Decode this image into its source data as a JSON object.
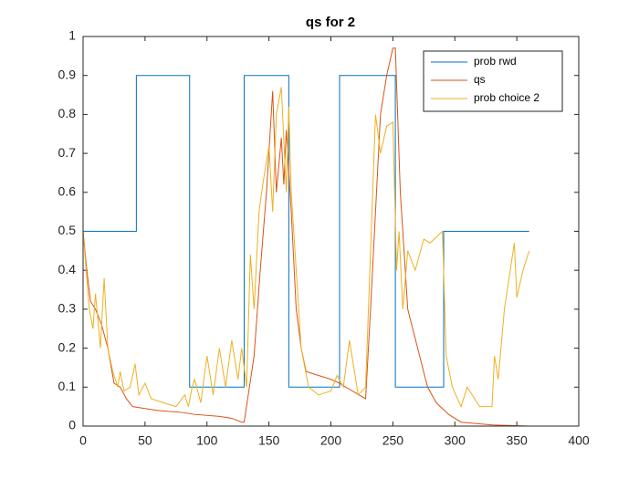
{
  "chart_data": {
    "type": "line",
    "title": "qs for 2",
    "xlim": [
      0,
      400
    ],
    "ylim": [
      0,
      1
    ],
    "xticks": [
      0,
      50,
      100,
      150,
      200,
      250,
      300,
      350,
      400
    ],
    "yticks": [
      0,
      0.1,
      0.2,
      0.3,
      0.4,
      0.5,
      0.6,
      0.7,
      0.8,
      0.9,
      1
    ],
    "legend": "upper right",
    "series": [
      {
        "name": "prob rwd",
        "color": "#0072BD",
        "x": [
          0,
          43,
          43,
          86,
          86,
          130,
          130,
          166,
          166,
          207,
          207,
          252,
          252,
          291,
          291,
          360
        ],
        "values": [
          0.5,
          0.5,
          0.9,
          0.9,
          0.1,
          0.1,
          0.9,
          0.9,
          0.1,
          0.1,
          0.9,
          0.9,
          0.1,
          0.1,
          0.5,
          0.5
        ]
      },
      {
        "name": "qs",
        "color": "#D95319",
        "x": [
          0,
          3,
          6,
          10,
          15,
          20,
          25,
          30,
          35,
          40,
          50,
          60,
          80,
          90,
          110,
          120,
          128,
          130,
          138,
          143,
          148,
          153,
          156,
          160,
          162,
          164,
          168,
          172,
          176,
          180,
          190,
          200,
          207,
          212,
          228,
          232,
          236,
          240,
          245,
          250,
          252,
          256,
          262,
          270,
          278,
          285,
          295,
          305,
          330,
          360
        ],
        "values": [
          0.5,
          0.4,
          0.32,
          0.3,
          0.26,
          0.2,
          0.11,
          0.1,
          0.07,
          0.05,
          0.045,
          0.04,
          0.035,
          0.03,
          0.025,
          0.02,
          0.01,
          0.01,
          0.18,
          0.4,
          0.6,
          0.86,
          0.6,
          0.74,
          0.62,
          0.76,
          0.55,
          0.3,
          0.2,
          0.14,
          0.13,
          0.12,
          0.11,
          0.1,
          0.07,
          0.3,
          0.55,
          0.8,
          0.9,
          0.97,
          0.97,
          0.6,
          0.3,
          0.2,
          0.1,
          0.06,
          0.03,
          0.01,
          0.003,
          0
        ]
      },
      {
        "name": "prob choice 2",
        "color": "#EDB120",
        "x": [
          0,
          5,
          8,
          10,
          14,
          17,
          20,
          24,
          28,
          30,
          33,
          38,
          42,
          45,
          50,
          55,
          65,
          75,
          82,
          85,
          88,
          90,
          95,
          100,
          105,
          110,
          115,
          120,
          125,
          128,
          132,
          135,
          138,
          142,
          145,
          150,
          153,
          156,
          160,
          164,
          166,
          168,
          172,
          176,
          182,
          190,
          200,
          205,
          210,
          215,
          222,
          228,
          232,
          236,
          240,
          245,
          250,
          253,
          255,
          258,
          262,
          268,
          275,
          280,
          290,
          293,
          298,
          305,
          310,
          320,
          330,
          332,
          335,
          340,
          348,
          350,
          355,
          360
        ],
        "values": [
          0.5,
          0.3,
          0.25,
          0.34,
          0.2,
          0.38,
          0.2,
          0.14,
          0.1,
          0.14,
          0.09,
          0.1,
          0.16,
          0.08,
          0.11,
          0.07,
          0.06,
          0.05,
          0.08,
          0.05,
          0.1,
          0.12,
          0.06,
          0.18,
          0.08,
          0.2,
          0.1,
          0.22,
          0.12,
          0.2,
          0.1,
          0.44,
          0.3,
          0.55,
          0.62,
          0.72,
          0.55,
          0.8,
          0.87,
          0.6,
          0.82,
          0.6,
          0.4,
          0.2,
          0.1,
          0.08,
          0.09,
          0.13,
          0.1,
          0.22,
          0.08,
          0.1,
          0.45,
          0.8,
          0.7,
          0.77,
          0.78,
          0.4,
          0.5,
          0.3,
          0.45,
          0.4,
          0.48,
          0.47,
          0.5,
          0.18,
          0.1,
          0.05,
          0.1,
          0.05,
          0.05,
          0.18,
          0.12,
          0.3,
          0.47,
          0.33,
          0.4,
          0.45
        ]
      }
    ]
  }
}
